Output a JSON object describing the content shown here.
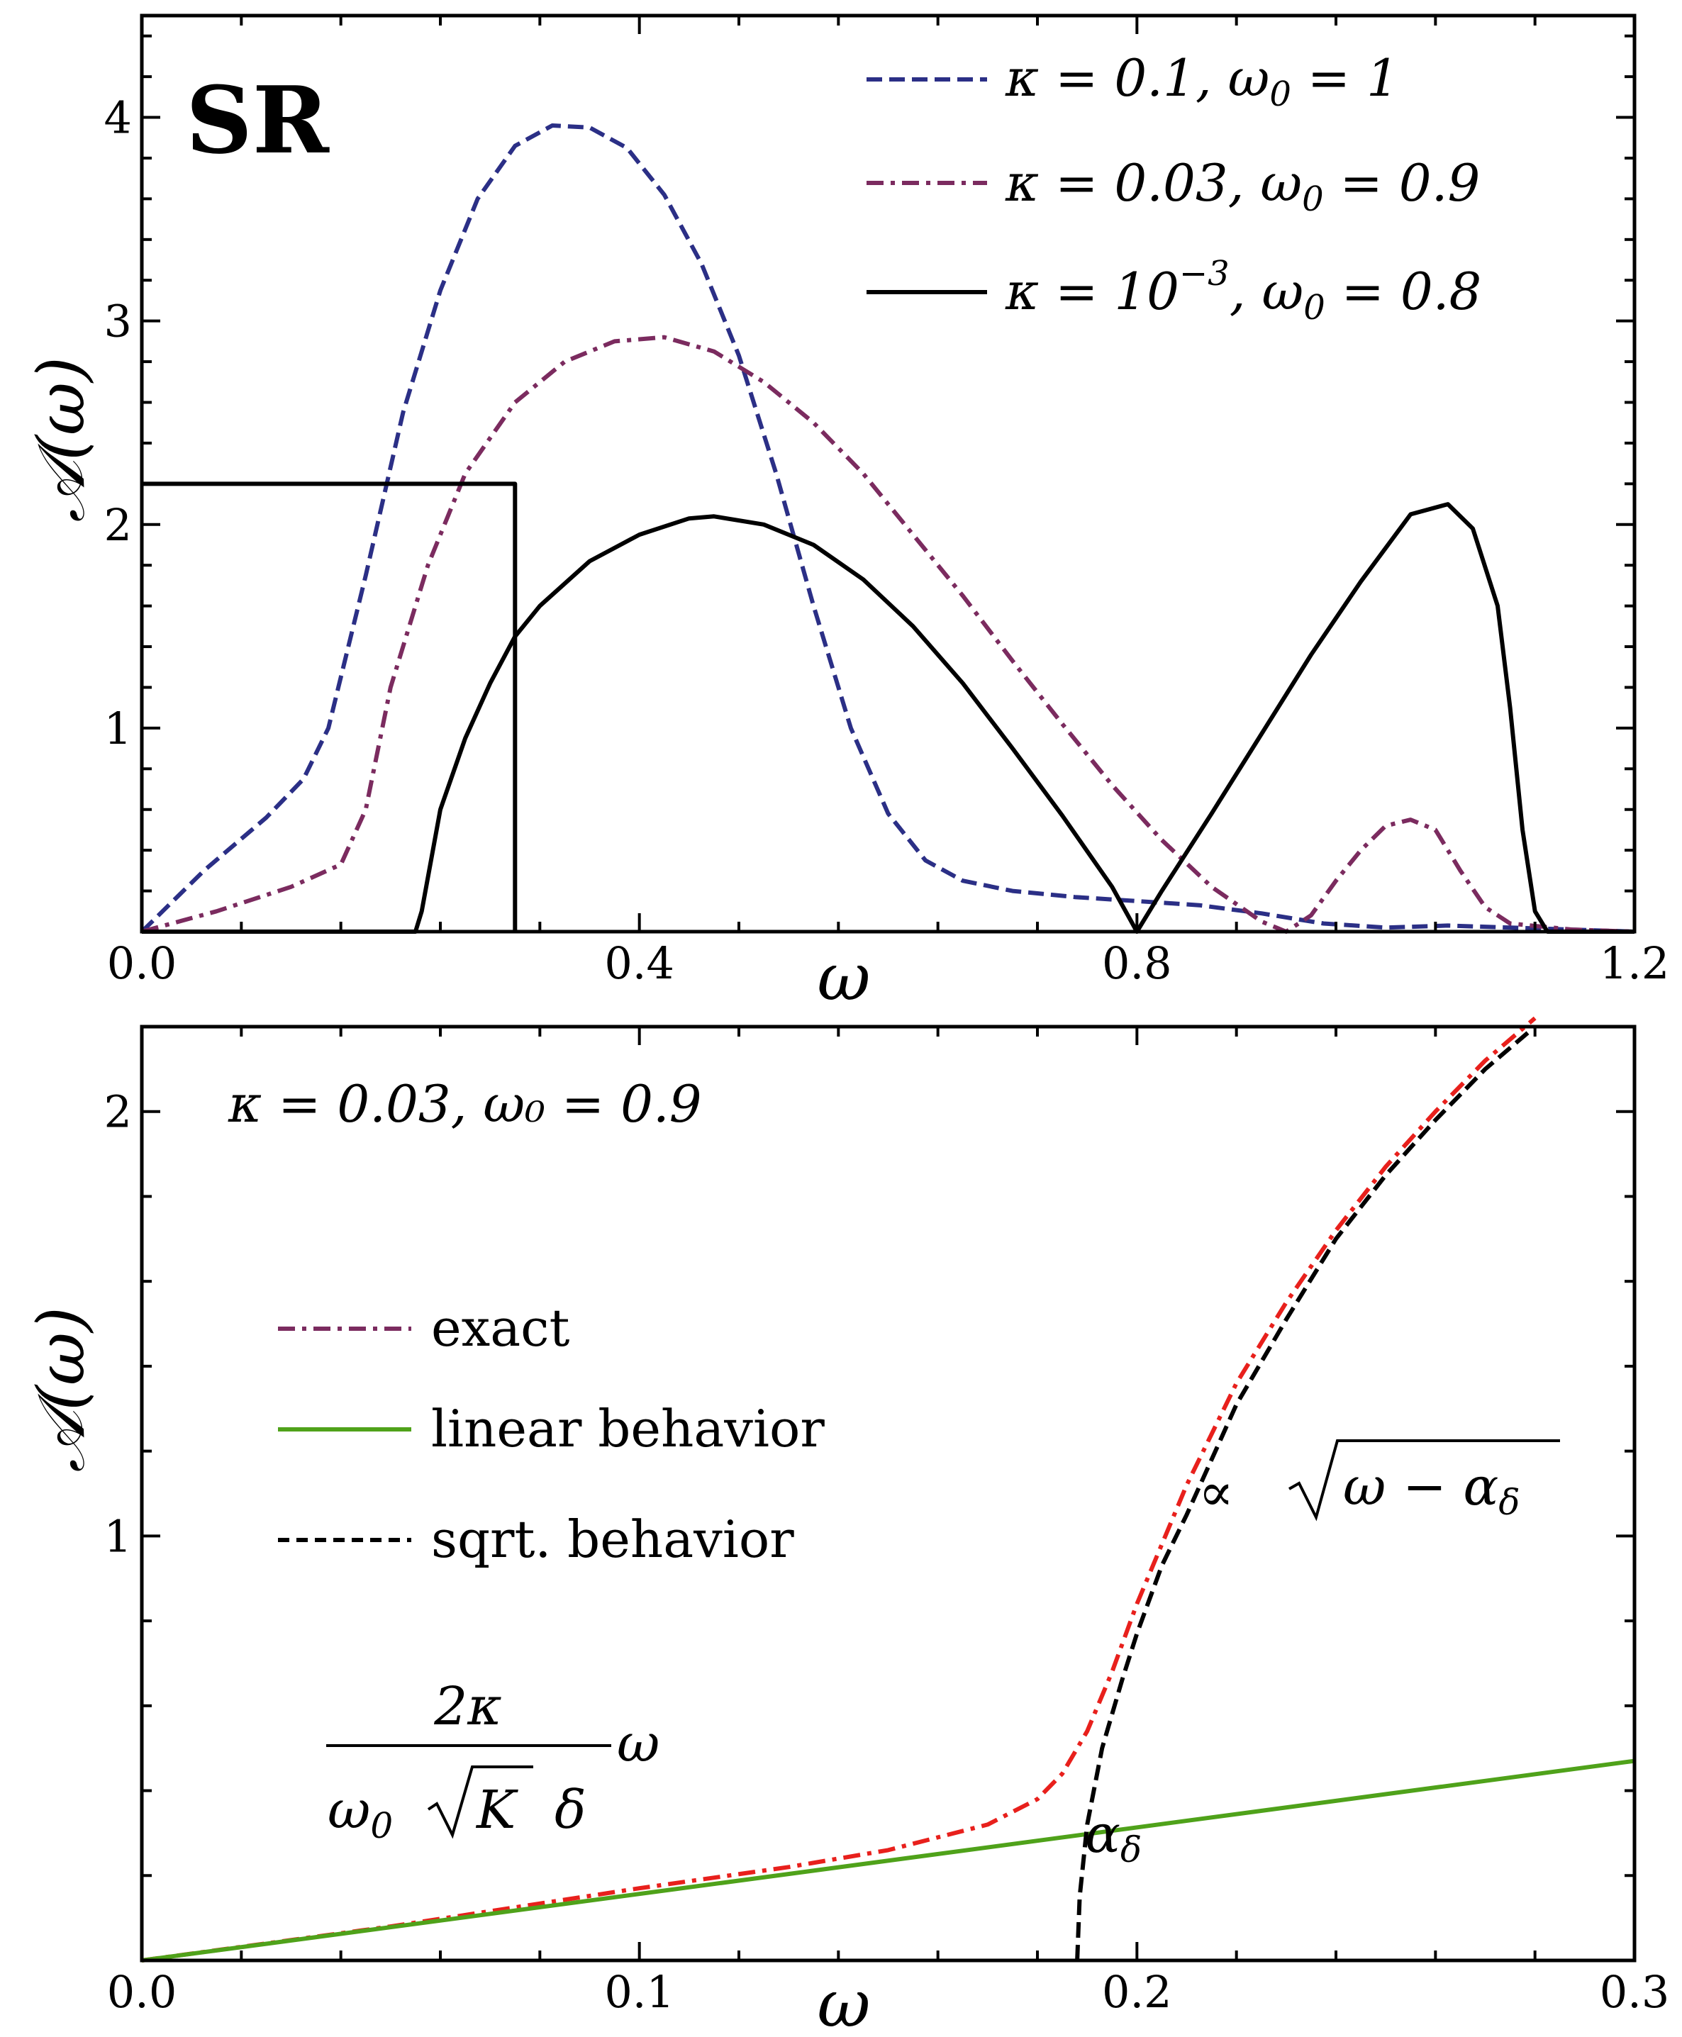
{
  "colors": {
    "blue": "#2b2f86",
    "purple": "#7b2b5f",
    "black": "#000000",
    "green": "#4fa21a",
    "red": "#e8201c"
  },
  "chart_data": [
    {
      "type": "line",
      "panel": "top",
      "tag": "SR",
      "xlabel": "ω",
      "ylabel": "𝒜(ω)",
      "xlim": [
        0,
        1.2
      ],
      "ylim": [
        0,
        4.5
      ],
      "xticks": [
        0.0,
        0.4,
        0.8,
        1.2
      ],
      "xtick_labels": [
        "0.0",
        "0.4",
        "0.8",
        "1.2"
      ],
      "yticks": [
        1,
        2,
        3,
        4
      ],
      "ytick_labels": [
        "1",
        "2",
        "3",
        "4"
      ],
      "legend_position": "top-right",
      "series": [
        {
          "name": "κ = 0.1, ω₀ = 1",
          "style": "dashed",
          "color": "#2b2f86",
          "x": [
            0,
            0.05,
            0.1,
            0.13,
            0.15,
            0.18,
            0.21,
            0.24,
            0.27,
            0.3,
            0.33,
            0.36,
            0.39,
            0.42,
            0.45,
            0.48,
            0.51,
            0.54,
            0.57,
            0.6,
            0.63,
            0.66,
            0.7,
            0.75,
            0.8,
            0.85,
            0.9,
            0.95,
            1.0,
            1.05,
            1.1,
            1.15,
            1.2
          ],
          "values": [
            0,
            0.3,
            0.56,
            0.75,
            1.0,
            1.75,
            2.55,
            3.15,
            3.6,
            3.86,
            3.96,
            3.95,
            3.85,
            3.62,
            3.28,
            2.83,
            2.25,
            1.6,
            1.0,
            0.58,
            0.35,
            0.25,
            0.2,
            0.17,
            0.15,
            0.13,
            0.09,
            0.04,
            0.02,
            0.03,
            0.02,
            0.01,
            0.0
          ]
        },
        {
          "name": "κ = 0.03, ω₀ = 0.9",
          "style": "dash-dot",
          "color": "#7b2b5f",
          "x": [
            0,
            0.06,
            0.12,
            0.16,
            0.18,
            0.2,
            0.23,
            0.26,
            0.3,
            0.34,
            0.38,
            0.42,
            0.46,
            0.5,
            0.54,
            0.58,
            0.62,
            0.66,
            0.7,
            0.74,
            0.78,
            0.82,
            0.86,
            0.9,
            0.92,
            0.94,
            0.96,
            0.98,
            1.0,
            1.02,
            1.04,
            1.06,
            1.08,
            1.1,
            1.15,
            1.2
          ],
          "values": [
            0,
            0.1,
            0.22,
            0.33,
            0.6,
            1.2,
            1.8,
            2.25,
            2.6,
            2.8,
            2.9,
            2.92,
            2.85,
            2.7,
            2.5,
            2.25,
            1.95,
            1.65,
            1.33,
            1.02,
            0.72,
            0.45,
            0.22,
            0.05,
            0.0,
            0.08,
            0.25,
            0.4,
            0.52,
            0.55,
            0.5,
            0.3,
            0.12,
            0.04,
            0.01,
            0.0
          ]
        },
        {
          "name": "κ = 10⁻³, ω₀ = 0.8",
          "style": "solid",
          "color": "#000000",
          "x": [
            0,
            0.22,
            0.225,
            0.24,
            0.26,
            0.28,
            0.3,
            0.32,
            0.36,
            0.4,
            0.44,
            0.46,
            0.5,
            0.54,
            0.58,
            0.62,
            0.66,
            0.7,
            0.74,
            0.78,
            0.8,
            0.82,
            0.86,
            0.9,
            0.94,
            0.98,
            1.02,
            1.05,
            1.07,
            1.09,
            1.1,
            1.11,
            1.12,
            1.13,
            1.2
          ],
          "values": [
            0,
            0.0,
            0.1,
            0.6,
            0.95,
            1.22,
            1.45,
            1.6,
            1.82,
            1.95,
            2.03,
            2.04,
            2.0,
            1.9,
            1.73,
            1.5,
            1.22,
            0.9,
            0.57,
            0.22,
            0.0,
            0.2,
            0.58,
            0.97,
            1.36,
            1.72,
            2.05,
            2.1,
            1.98,
            1.6,
            1.1,
            0.5,
            0.1,
            0.0,
            0.0
          ]
        },
        {
          "name": "",
          "style": "solid-step",
          "color": "#000000",
          "x": [
            0,
            0.3,
            0.3
          ],
          "values": [
            2.2,
            2.2,
            0
          ]
        }
      ],
      "legend": [
        {
          "prefix": "κ = 0.1, ω",
          "sub": "0",
          "suffix": " = 1",
          "style": "dashed",
          "color": "#2b2f86"
        },
        {
          "prefix": "κ = 0.03, ω",
          "sub": "0",
          "suffix": " = 0.9",
          "style": "dash-dot",
          "color": "#7b2b5f"
        },
        {
          "prefix": "κ = 10",
          "sup": "−3",
          "mid": ", ω",
          "sub": "0",
          "suffix": " = 0.8",
          "style": "solid",
          "color": "#000000"
        }
      ]
    },
    {
      "type": "line",
      "panel": "bottom",
      "tag": "κ = 0.03, ω₀ = 0.9",
      "xlabel": "ω",
      "ylabel": "𝒜(ω)",
      "xlim": [
        0,
        0.3
      ],
      "ylim": [
        0,
        2.2
      ],
      "xticks": [
        0.0,
        0.1,
        0.2,
        0.3
      ],
      "xtick_labels": [
        "0.0",
        "0.1",
        "0.2",
        "0.3"
      ],
      "yticks": [
        1,
        2
      ],
      "ytick_labels": [
        "1",
        "2"
      ],
      "legend_position": "middle-left",
      "series": [
        {
          "name": "exact",
          "style": "dash-dot",
          "color": "#e8201c",
          "x": [
            0,
            0.05,
            0.1,
            0.13,
            0.15,
            0.17,
            0.18,
            0.185,
            0.19,
            0.195,
            0.2,
            0.205,
            0.21,
            0.22,
            0.23,
            0.24,
            0.25,
            0.26,
            0.27,
            0.28
          ],
          "values": [
            0,
            0.08,
            0.17,
            0.22,
            0.26,
            0.32,
            0.38,
            0.44,
            0.54,
            0.68,
            0.84,
            0.98,
            1.12,
            1.36,
            1.55,
            1.72,
            1.87,
            2.0,
            2.12,
            2.22
          ]
        },
        {
          "name": "linear behavior",
          "style": "solid",
          "color": "#4fa21a",
          "x": [
            0,
            0.3
          ],
          "values": [
            0,
            0.47
          ]
        },
        {
          "name": "sqrt. behavior",
          "style": "dashed",
          "color": "#000000",
          "x": [
            0.188,
            0.1885,
            0.19,
            0.193,
            0.197,
            0.2,
            0.205,
            0.21,
            0.22,
            0.23,
            0.24,
            0.25,
            0.26,
            0.27,
            0.28
          ],
          "values": [
            0,
            0.15,
            0.32,
            0.5,
            0.66,
            0.77,
            0.93,
            1.05,
            1.31,
            1.51,
            1.7,
            1.85,
            1.98,
            2.1,
            2.2
          ]
        }
      ],
      "legend": [
        {
          "label": "exact",
          "style": "dash-dot",
          "color": "#7b2b5f"
        },
        {
          "label": "linear behavior",
          "style": "solid",
          "color": "#4fa21a"
        },
        {
          "label": "sqrt. behavior",
          "style": "dashed",
          "color": "#000000"
        }
      ],
      "annotations": {
        "sqrt_prefix": "∝ ",
        "sqrt_radicand": "ω − α",
        "sqrt_sub": "δ",
        "alpha": "α",
        "alpha_sub": "δ",
        "lin_num": "2κ",
        "lin_den_a": "ω",
        "lin_den_a_sub": "0",
        "lin_den_b": "K",
        "lin_den_c": "δ",
        "lin_after": "ω"
      }
    }
  ]
}
